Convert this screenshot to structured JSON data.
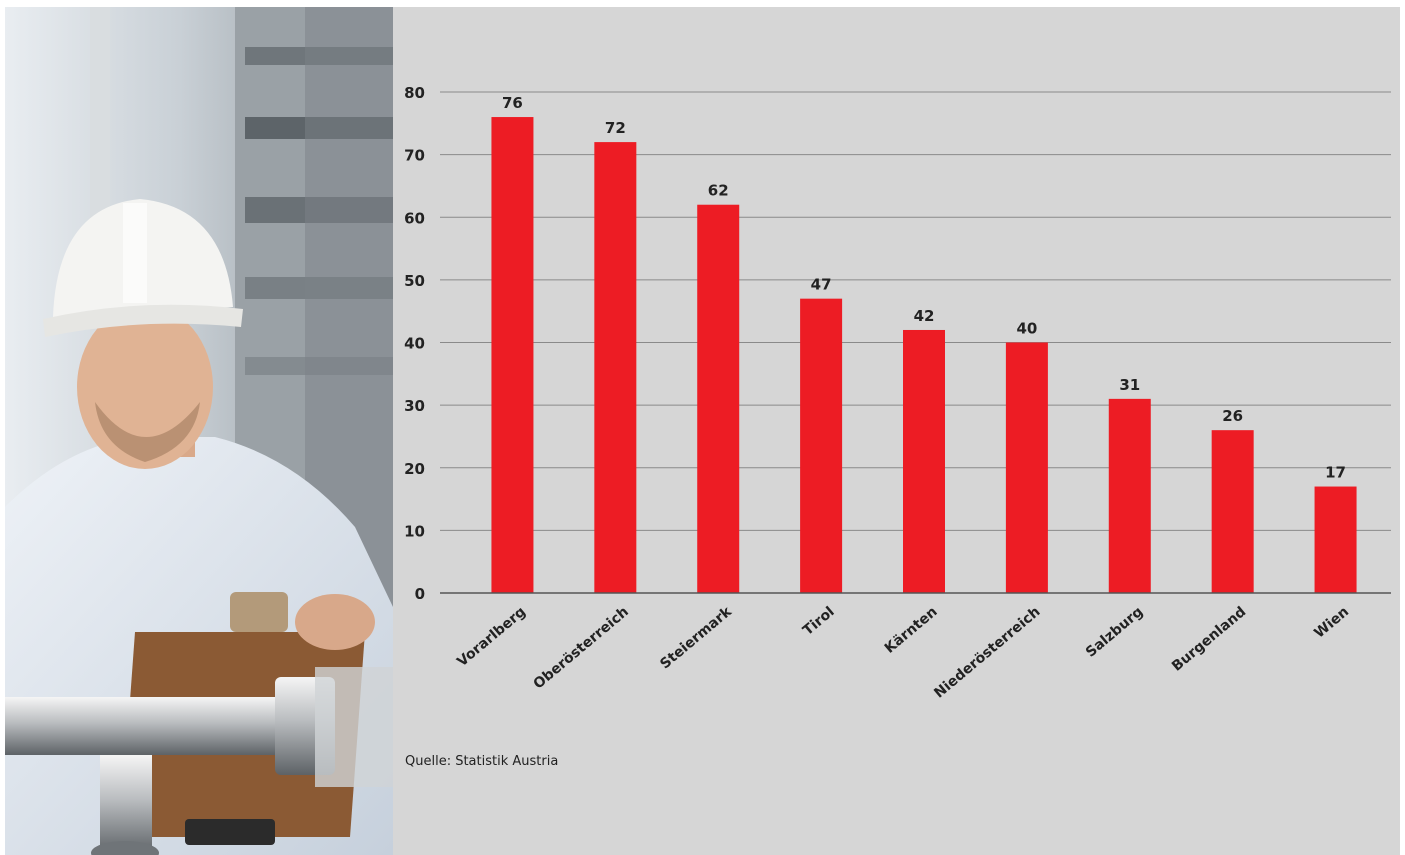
{
  "colors": {
    "bar": "#ed1c24",
    "chart_background": "#d6d6d6",
    "grid": "#8a8a8a",
    "text": "#222222"
  },
  "photo": {
    "description_icon": "worker-photo"
  },
  "chart_data": {
    "type": "bar",
    "title": "",
    "xlabel": "",
    "ylabel": "",
    "categories": [
      "Vorarlberg",
      "Oberösterreich",
      "Steiermark",
      "Tirol",
      "Kärnten",
      "Niederösterreich",
      "Salzburg",
      "Burgenland",
      "Wien"
    ],
    "values": [
      76,
      72,
      62,
      47,
      42,
      40,
      31,
      26,
      17
    ],
    "ylim": [
      0,
      80
    ],
    "yticks": [
      0,
      10,
      20,
      30,
      40,
      50,
      60,
      70,
      80
    ],
    "grid": true,
    "data_labels": true
  },
  "source": "Quelle: Statistik Austria"
}
